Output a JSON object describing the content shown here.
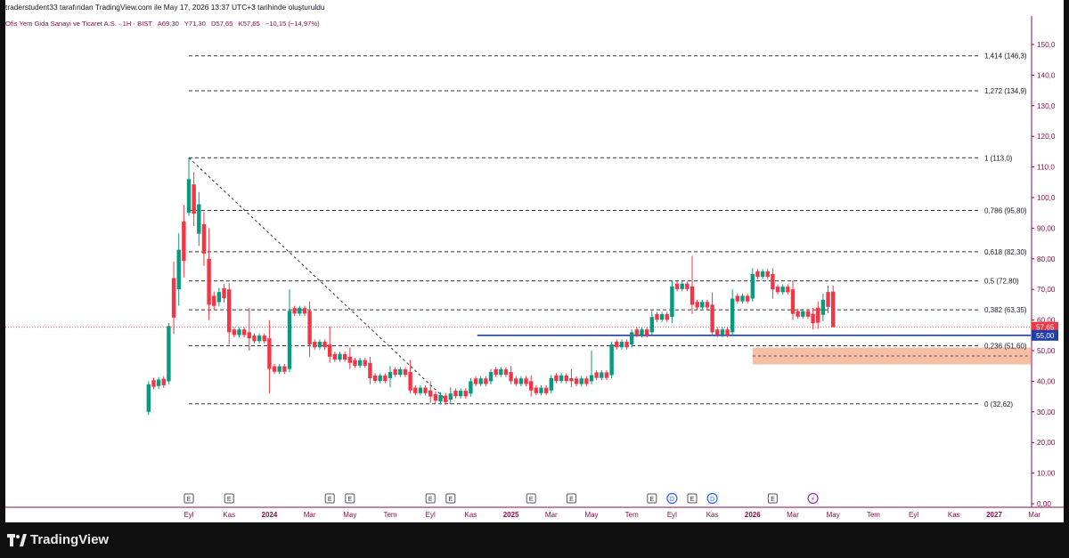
{
  "header": {
    "credit": "traderstudent33 tarafından TradingView.com ile May 17, 2026 13:37 UTC+3 tarihinde oluşturuldu"
  },
  "legend": {
    "symbol": "Ofis Yem Gida Sanayi ve Ticaret A.S. · 1H · BIST",
    "open": "A69,30",
    "high": "Y71,30",
    "low": "D57,65",
    "close": "K57,65",
    "change": "−10,15 (−14,97%)"
  },
  "brand": {
    "name": "TradingView"
  },
  "colors": {
    "up": "#089981",
    "down": "#f23645",
    "accent": "#880e4f",
    "level_line": "#1e3ea8",
    "zone": "#f5b395"
  },
  "chart_data": {
    "type": "candlestick",
    "title": "",
    "xlabel": "",
    "ylabel": "",
    "ylim": [
      0,
      155
    ],
    "y_ticks": [
      "0,00",
      "10,00",
      "20,00",
      "30,00",
      "40,00",
      "50,00",
      "60,00",
      "70,00",
      "80,00",
      "90,00",
      "100,0",
      "110,0",
      "120,0",
      "130,0",
      "140,0",
      "150,0"
    ],
    "y_tick_values": [
      0,
      10,
      20,
      30,
      40,
      50,
      60,
      70,
      80,
      90,
      100,
      110,
      120,
      130,
      140,
      150
    ],
    "x_ticks": [
      {
        "label": "Eyl",
        "x": "2023-09"
      },
      {
        "label": "Kas",
        "x": "2023-11"
      },
      {
        "label": "2024",
        "x": "2024-01"
      },
      {
        "label": "Mar",
        "x": "2024-03"
      },
      {
        "label": "May",
        "x": "2024-05"
      },
      {
        "label": "Tem",
        "x": "2024-07"
      },
      {
        "label": "Eyl",
        "x": "2024-09"
      },
      {
        "label": "Kas",
        "x": "2024-11"
      },
      {
        "label": "2025",
        "x": "2025-01"
      },
      {
        "label": "Mar",
        "x": "2025-03"
      },
      {
        "label": "May",
        "x": "2025-05"
      },
      {
        "label": "Tem",
        "x": "2025-07"
      },
      {
        "label": "Eyl",
        "x": "2025-09"
      },
      {
        "label": "Kas",
        "x": "2025-11"
      },
      {
        "label": "2026",
        "x": "2026-01"
      },
      {
        "label": "Mar",
        "x": "2026-03"
      },
      {
        "label": "May",
        "x": "2026-05"
      },
      {
        "label": "Tem",
        "x": "2026-07"
      },
      {
        "label": "Eyl",
        "x": "2026-09"
      },
      {
        "label": "Kas",
        "x": "2026-11"
      },
      {
        "label": "2027",
        "x": "2027-01"
      },
      {
        "label": "Mar",
        "x": "2027-03"
      }
    ],
    "bold_x_labels": [
      "2024",
      "2025",
      "2026",
      "2027"
    ],
    "fib_levels": [
      {
        "label": "1,414 (146,3)",
        "value": 146.3
      },
      {
        "label": "1,272 (134,9)",
        "value": 134.9
      },
      {
        "label": "1 (113,0)",
        "value": 113.0
      },
      {
        "label": "0,786 (95,80)",
        "value": 95.8
      },
      {
        "label": "0,618 (82,30)",
        "value": 82.3
      },
      {
        "label": "0,5 (72,80)",
        "value": 72.8
      },
      {
        "label": "0,382 (63,35)",
        "value": 63.35
      },
      {
        "label": "0,236 (51,60)",
        "value": 51.6
      },
      {
        "label": "0 (32,62)",
        "value": 32.62
      }
    ],
    "fib_start": "2023-09",
    "fib_trend": {
      "from": {
        "x": "2023-09",
        "y": 113.0
      },
      "to": {
        "x": "2024-10",
        "y": 32.62
      }
    },
    "support_line": {
      "value": 55.0,
      "label": "55,00",
      "from": "2024-10"
    },
    "demand_zone": {
      "from": "2026-01",
      "low": 45.5,
      "high": 51.0
    },
    "last_price": {
      "value": 57.65,
      "label": "57,65"
    },
    "events": [
      {
        "x": "2023-09",
        "label": "E"
      },
      {
        "x": "2023-11",
        "label": "E"
      },
      {
        "x": "2024-04",
        "label": "E"
      },
      {
        "x": "2024-05",
        "label": "E"
      },
      {
        "x": "2024-09",
        "label": "E"
      },
      {
        "x": "2024-10",
        "label": "E"
      },
      {
        "x": "2025-02",
        "label": "E"
      },
      {
        "x": "2025-04",
        "label": "E"
      },
      {
        "x": "2025-08",
        "label": "E"
      },
      {
        "x": "2025-09",
        "label": "D"
      },
      {
        "x": "2025-10",
        "label": "E"
      },
      {
        "x": "2025-11",
        "label": "D"
      },
      {
        "x": "2026-02",
        "label": "E"
      },
      {
        "x": "2026-04",
        "label": "⚡"
      }
    ],
    "candles": [
      {
        "x": "2023-07",
        "o": 30,
        "h": 40,
        "l": 29,
        "c": 39
      },
      {
        "x": "2023-08",
        "o": 40,
        "h": 59,
        "l": 39,
        "c": 58
      },
      {
        "x": "2023-09",
        "o": 95,
        "h": 113,
        "l": 94,
        "c": 106
      },
      {
        "x": "2023-10",
        "o": 80,
        "h": 90,
        "l": 60,
        "c": 65
      },
      {
        "x": "2023-11",
        "o": 70,
        "h": 72,
        "l": 52,
        "c": 56
      },
      {
        "x": "2023-12",
        "o": 56,
        "h": 64,
        "l": 50,
        "c": 54
      },
      {
        "x": "2024-01",
        "o": 54,
        "h": 60,
        "l": 36,
        "c": 44
      },
      {
        "x": "2024-02",
        "o": 44,
        "h": 70,
        "l": 43,
        "c": 63
      },
      {
        "x": "2024-03",
        "o": 63,
        "h": 66,
        "l": 48,
        "c": 52
      },
      {
        "x": "2024-04",
        "o": 52,
        "h": 58,
        "l": 46,
        "c": 48
      },
      {
        "x": "2024-05",
        "o": 48,
        "h": 51,
        "l": 44,
        "c": 46
      },
      {
        "x": "2024-06",
        "o": 46,
        "h": 48,
        "l": 39,
        "c": 41
      },
      {
        "x": "2024-07",
        "o": 41,
        "h": 45,
        "l": 38,
        "c": 43
      },
      {
        "x": "2024-08",
        "o": 43,
        "h": 47,
        "l": 36,
        "c": 37
      },
      {
        "x": "2024-09",
        "o": 37,
        "h": 40,
        "l": 33,
        "c": 35
      },
      {
        "x": "2024-10",
        "o": 34,
        "h": 38,
        "l": 33,
        "c": 36
      },
      {
        "x": "2024-11",
        "o": 36,
        "h": 41,
        "l": 35,
        "c": 40
      },
      {
        "x": "2024-12",
        "o": 40,
        "h": 44,
        "l": 39,
        "c": 43
      },
      {
        "x": "2025-01",
        "o": 43,
        "h": 45,
        "l": 39,
        "c": 40
      },
      {
        "x": "2025-02",
        "o": 40,
        "h": 42,
        "l": 35,
        "c": 37
      },
      {
        "x": "2025-03",
        "o": 37,
        "h": 42,
        "l": 36,
        "c": 41
      },
      {
        "x": "2025-04",
        "o": 41,
        "h": 44,
        "l": 38,
        "c": 40
      },
      {
        "x": "2025-05",
        "o": 40,
        "h": 50,
        "l": 39,
        "c": 42
      },
      {
        "x": "2025-06",
        "o": 42,
        "h": 53,
        "l": 41,
        "c": 52
      },
      {
        "x": "2025-07",
        "o": 52,
        "h": 57,
        "l": 51,
        "c": 56
      },
      {
        "x": "2025-08",
        "o": 56,
        "h": 63,
        "l": 55,
        "c": 61
      },
      {
        "x": "2025-09",
        "o": 61,
        "h": 73,
        "l": 59,
        "c": 71
      },
      {
        "x": "2025-10",
        "o": 71,
        "h": 81,
        "l": 62,
        "c": 65
      },
      {
        "x": "2025-11",
        "o": 65,
        "h": 69,
        "l": 55,
        "c": 56
      },
      {
        "x": "2025-12",
        "o": 56,
        "h": 70,
        "l": 55,
        "c": 67
      },
      {
        "x": "2026-01",
        "o": 67,
        "h": 77,
        "l": 66,
        "c": 75
      },
      {
        "x": "2026-02",
        "o": 75,
        "h": 77,
        "l": 67,
        "c": 70
      },
      {
        "x": "2026-03",
        "o": 70,
        "h": 73,
        "l": 60,
        "c": 62
      },
      {
        "x": "2026-04",
        "o": 62,
        "h": 64,
        "l": 57,
        "c": 59
      },
      {
        "x": "2026-05",
        "o": 69.3,
        "h": 71.3,
        "l": 57.65,
        "c": 57.65
      }
    ]
  }
}
